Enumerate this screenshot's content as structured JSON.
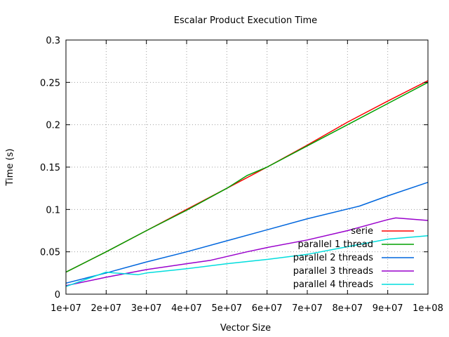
{
  "chart_data": {
    "type": "line",
    "title": "Escalar Product Execution Time",
    "xlabel": "Vector Size",
    "ylabel": "Time (s)",
    "xlim": [
      10000000,
      100000000
    ],
    "ylim": [
      0,
      0.3
    ],
    "grid": true,
    "legend_position": "bottom-right",
    "x_ticks": [
      10000000,
      20000000,
      30000000,
      40000000,
      50000000,
      60000000,
      70000000,
      80000000,
      90000000,
      100000000
    ],
    "x_tick_labels": [
      "1e+07",
      "2e+07",
      "3e+07",
      "4e+07",
      "5e+07",
      "6e+07",
      "7e+07",
      "8e+07",
      "9e+07",
      "1e+08"
    ],
    "y_ticks": [
      0,
      0.05,
      0.1,
      0.15,
      0.2,
      0.25,
      0.3
    ],
    "y_tick_labels": [
      "0",
      "0.05",
      "0.1",
      "0.15",
      "0.2",
      "0.25",
      "0.3"
    ],
    "series": [
      {
        "name": "serie",
        "color": "#ff0000",
        "x": [
          10000000,
          20000000,
          30000000,
          40000000,
          50000000,
          60000000,
          70000000,
          80000000,
          90000000,
          100000000
        ],
        "values": [
          0.026,
          0.05,
          0.075,
          0.1,
          0.125,
          0.15,
          0.176,
          0.203,
          0.228,
          0.252
        ]
      },
      {
        "name": "parallel 1 thread",
        "color": "#00a000",
        "x": [
          10000000,
          20000000,
          30000000,
          40000000,
          50000000,
          55000000,
          60000000,
          70000000,
          80000000,
          90000000,
          100000000
        ],
        "values": [
          0.026,
          0.05,
          0.075,
          0.099,
          0.125,
          0.14,
          0.15,
          0.175,
          0.2,
          0.225,
          0.25
        ]
      },
      {
        "name": "parallel 2 threads",
        "color": "#0066dd",
        "x": [
          10000000,
          20000000,
          30000000,
          40000000,
          50000000,
          60000000,
          70000000,
          83000000,
          90000000,
          100000000
        ],
        "values": [
          0.013,
          0.025,
          0.038,
          0.05,
          0.063,
          0.076,
          0.089,
          0.104,
          0.116,
          0.132
        ]
      },
      {
        "name": "parallel 3 threads",
        "color": "#9900cc",
        "x": [
          10000000,
          20000000,
          30000000,
          40000000,
          46000000,
          55000000,
          60000000,
          70000000,
          80000000,
          90000000,
          92000000,
          100000000
        ],
        "values": [
          0.01,
          0.02,
          0.029,
          0.036,
          0.04,
          0.05,
          0.055,
          0.064,
          0.075,
          0.088,
          0.09,
          0.087
        ]
      },
      {
        "name": "parallel 4 threads",
        "color": "#00dddd",
        "x": [
          10000000,
          20000000,
          22000000,
          28000000,
          30000000,
          40000000,
          50000000,
          60000000,
          70000000,
          80000000,
          90000000,
          100000000
        ],
        "values": [
          0.009,
          0.026,
          0.025,
          0.023,
          0.025,
          0.03,
          0.036,
          0.041,
          0.047,
          0.056,
          0.065,
          0.069
        ]
      }
    ]
  }
}
